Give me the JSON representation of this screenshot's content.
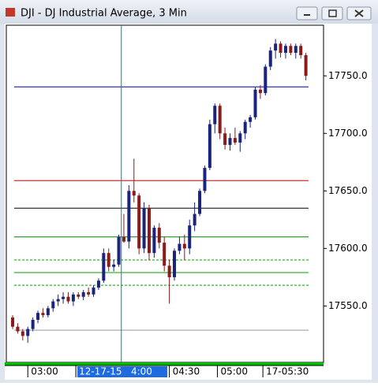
{
  "chart_data": {
    "type": "candlestick",
    "title": "DJI - DJ Industrial Average, 3 Min",
    "categories": [
      null,
      null,
      null,
      null,
      null,
      null,
      null,
      null,
      null,
      null,
      null,
      null,
      null,
      null,
      null,
      null,
      null,
      null,
      null,
      null,
      null,
      null,
      null,
      null,
      null,
      null,
      null,
      null,
      null,
      null,
      null,
      null,
      null,
      null,
      null,
      null,
      null,
      null,
      null,
      null,
      null,
      null,
      null,
      null,
      null,
      null,
      null,
      null,
      null,
      null,
      null,
      null,
      null,
      null,
      null,
      null,
      null,
      null,
      null
    ],
    "open": [
      17540,
      17532,
      17528,
      17524,
      17530,
      17538,
      17544,
      17542,
      17548,
      17554,
      17556,
      17558,
      17554,
      17560,
      17558,
      17562,
      17560,
      17566,
      17572,
      17596,
      17584,
      17586,
      17610,
      17606,
      17650,
      17646,
      17600,
      17635,
      17596,
      17618,
      17605,
      17585,
      17575,
      17598,
      17604,
      17600,
      17620,
      17630,
      17650,
      17670,
      17708,
      17724,
      17700,
      17690,
      17696,
      17692,
      17700,
      17710,
      17714,
      17738,
      17735,
      17758,
      17772,
      17778,
      17770,
      17776,
      17770,
      17776,
      17768
    ],
    "high": [
      17542,
      17535,
      17530,
      17532,
      17540,
      17546,
      17548,
      17550,
      17556,
      17560,
      17562,
      17562,
      17562,
      17562,
      17564,
      17566,
      17568,
      17574,
      17600,
      17600,
      17590,
      17612,
      17630,
      17655,
      17678,
      17648,
      17640,
      17638,
      17620,
      17622,
      17610,
      17590,
      17600,
      17610,
      17612,
      17625,
      17640,
      17652,
      17672,
      17712,
      17726,
      17726,
      17705,
      17700,
      17705,
      17702,
      17712,
      17716,
      17740,
      17742,
      17760,
      17775,
      17782,
      17780,
      17778,
      17778,
      17778,
      17778,
      17770
    ],
    "low": [
      17530,
      17526,
      17520,
      17518,
      17528,
      17535,
      17540,
      17540,
      17545,
      17550,
      17552,
      17552,
      17550,
      17556,
      17555,
      17558,
      17558,
      17564,
      17570,
      17580,
      17580,
      17584,
      17605,
      17600,
      17640,
      17595,
      17596,
      17590,
      17592,
      17600,
      17580,
      17552,
      17572,
      17595,
      17590,
      17595,
      17615,
      17628,
      17648,
      17668,
      17700,
      17695,
      17686,
      17685,
      17690,
      17684,
      17695,
      17705,
      17712,
      17730,
      17733,
      17755,
      17765,
      17766,
      17765,
      17768,
      17765,
      17765,
      17746
    ],
    "close": [
      17532,
      17528,
      17524,
      17530,
      17538,
      17544,
      17542,
      17548,
      17554,
      17556,
      17558,
      17554,
      17560,
      17558,
      17562,
      17560,
      17566,
      17572,
      17596,
      17584,
      17586,
      17610,
      17606,
      17650,
      17646,
      17600,
      17635,
      17596,
      17618,
      17605,
      17585,
      17575,
      17598,
      17604,
      17600,
      17620,
      17630,
      17650,
      17670,
      17708,
      17724,
      17700,
      17690,
      17696,
      17692,
      17700,
      17710,
      17714,
      17738,
      17735,
      17758,
      17772,
      17778,
      17770,
      17776,
      17770,
      17776,
      17768,
      17750
    ],
    "up_color": "#1a237e",
    "down_color": "#8b1a1a",
    "xlim": [
      -1.25,
      61.5
    ],
    "xticks": [
      {
        "value": 3,
        "label": "03:00"
      },
      {
        "value": 12.5,
        "label": "12-17-15   4:00",
        "highlight": true
      },
      {
        "value": 31,
        "label": "04:30"
      },
      {
        "value": 40.5,
        "label": "05:00"
      },
      {
        "value": 49.5,
        "label": "17-05:30"
      }
    ],
    "ylim": [
      17501,
      17794
    ],
    "yticks": [
      {
        "value": 17550,
        "label": "17550.0"
      },
      {
        "value": 17600,
        "label": "17600.0"
      },
      {
        "value": 17650,
        "label": "17650.0"
      },
      {
        "value": 17700,
        "label": "17700.0"
      },
      {
        "value": 17750,
        "label": "17750.0"
      }
    ],
    "hlines": [
      {
        "value": 17740.4,
        "color": "#0000aa",
        "dashed": false
      },
      {
        "value": 17659,
        "color": "#cc0000",
        "dashed": false
      },
      {
        "value": 17635,
        "color": "#000000",
        "dashed": false
      },
      {
        "value": 17610,
        "color": "#008000",
        "dashed": false
      },
      {
        "value": 17590,
        "color": "#00a000",
        "dashed": true
      },
      {
        "value": 17579,
        "color": "#00a000",
        "dashed": false
      },
      {
        "value": 17568,
        "color": "#00a000",
        "dashed": true
      },
      {
        "value": 17529,
        "color": "#999999",
        "dashed": false
      }
    ],
    "vline": {
      "value": 21.5,
      "color": "#008b8b"
    }
  }
}
